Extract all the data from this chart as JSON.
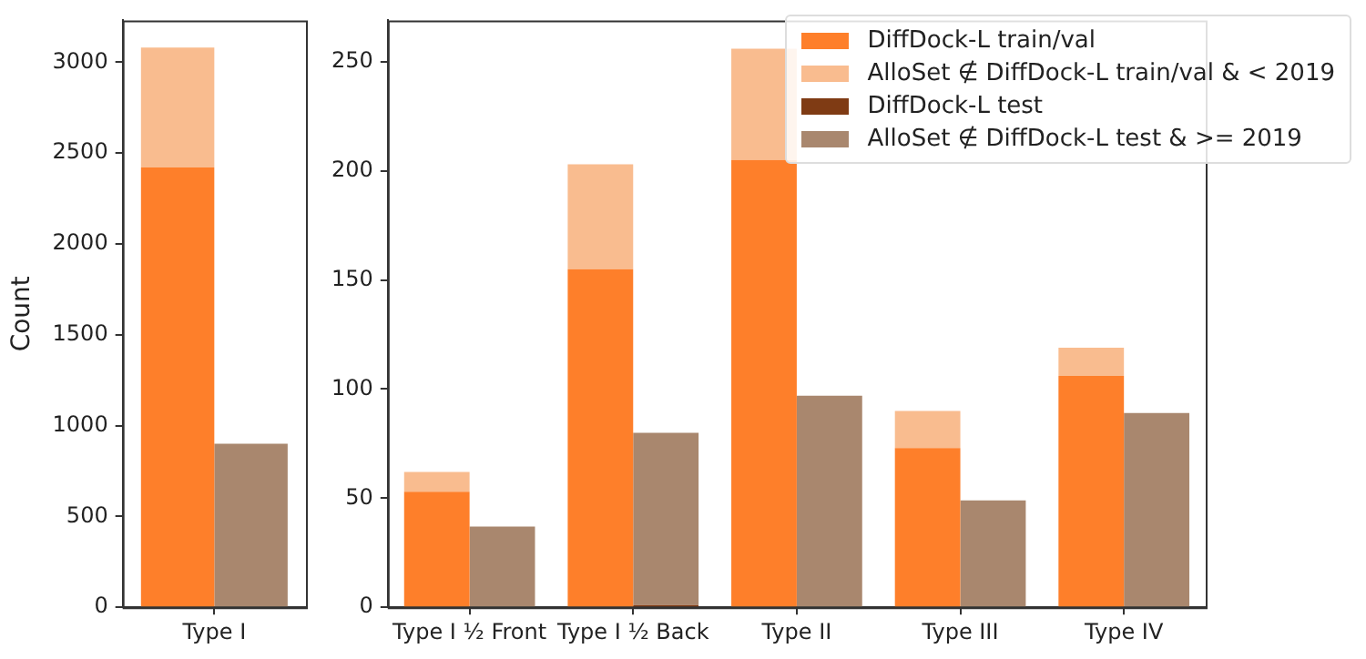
{
  "chart_data": [
    {
      "type": "bar",
      "ylabel": "Count",
      "categories": [
        "Type I"
      ],
      "ylim": [
        0,
        3230
      ],
      "yticks": [
        0,
        500,
        1000,
        1500,
        2000,
        2500,
        3000
      ],
      "grid": false,
      "legend": false,
      "series": [
        {
          "color": "#fe7f2a",
          "values": [
            2420
          ],
          "base": [
            0
          ]
        },
        {
          "color": "#f9bc8f",
          "values": [
            660
          ],
          "base": [
            2420
          ]
        },
        {
          "color": "#a9876e",
          "values": [
            900
          ],
          "base": [
            0
          ]
        }
      ]
    },
    {
      "type": "bar",
      "categories": [
        "Type I ½ Front",
        "Type I ½ Back",
        "Type II",
        "Type III",
        "Type IV"
      ],
      "ylim": [
        0,
        269
      ],
      "yticks": [
        0,
        50,
        100,
        150,
        200,
        250
      ],
      "grid": false,
      "legend": "top right",
      "series": [
        {
          "name": "DiffDock-L train/val",
          "color": "#fe7f2a",
          "values": [
            53,
            155,
            205,
            73,
            106
          ],
          "base": [
            0,
            0,
            0,
            0,
            0
          ]
        },
        {
          "name": "AlloSet ∉ DiffDock-L train/val & < 2019",
          "color": "#f9bc8f",
          "values": [
            9,
            48,
            51,
            17,
            13
          ],
          "base": [
            53,
            155,
            205,
            73,
            106
          ]
        },
        {
          "name": "DiffDock-L test",
          "color": "#7f3b14",
          "values": [
            null,
            1,
            null,
            null,
            null
          ],
          "base": [
            null,
            0,
            null,
            null,
            null
          ]
        },
        {
          "name": "AlloSet ∉ DiffDock-L test & >= 2019",
          "color": "#a9876e",
          "values": [
            37,
            79,
            97,
            49,
            89
          ],
          "base": [
            0,
            1,
            0,
            0,
            0
          ]
        }
      ]
    }
  ]
}
